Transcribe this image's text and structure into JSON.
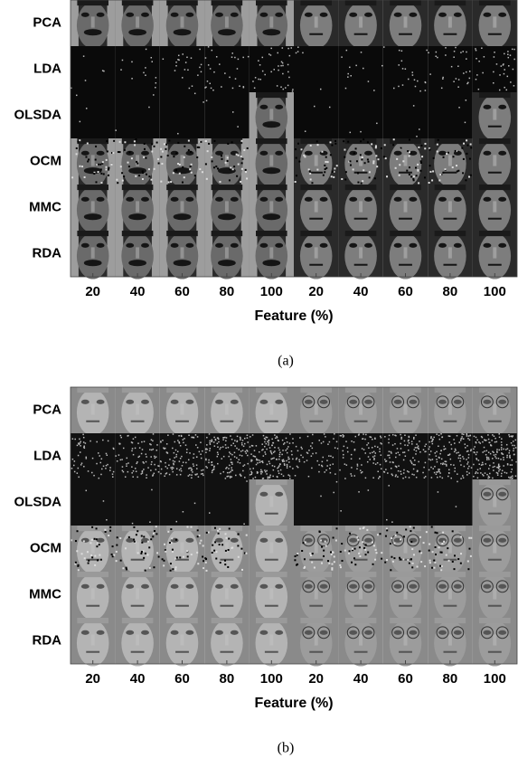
{
  "panels": [
    {
      "rows": [
        "PCA",
        "LDA",
        "OLSDA",
        "OCM",
        "MMC",
        "RDA"
      ],
      "columns": [
        "20",
        "40",
        "60",
        "80",
        "100",
        "20",
        "40",
        "60",
        "80",
        "100"
      ],
      "xlabel": "Feature (%)",
      "caption": "(a)"
    },
    {
      "rows": [
        "PCA",
        "LDA",
        "OLSDA",
        "OCM",
        "MMC",
        "RDA"
      ],
      "columns": [
        "20",
        "40",
        "60",
        "80",
        "100",
        "20",
        "40",
        "60",
        "80",
        "100"
      ],
      "xlabel": "Feature (%)",
      "caption": "(b)"
    }
  ]
}
